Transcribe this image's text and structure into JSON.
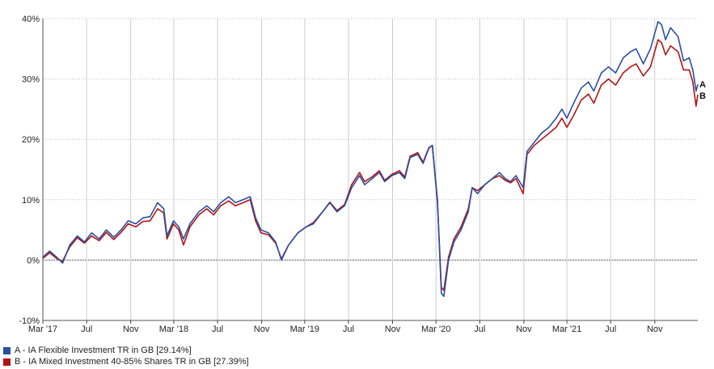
{
  "chart_data": {
    "type": "line",
    "title": "",
    "xlabel": "",
    "ylabel": "",
    "ylim": [
      -10,
      40
    ],
    "yticks": [
      -10,
      0,
      10,
      20,
      30,
      40
    ],
    "ytick_labels": [
      "-10%",
      "0%",
      "10%",
      "20%",
      "30%",
      "40%"
    ],
    "xlim": [
      "2017-03-01",
      "2022-03-01"
    ],
    "xticks": [
      "2017-03-01",
      "2017-07-01",
      "2017-11-01",
      "2018-03-01",
      "2018-07-01",
      "2018-11-01",
      "2019-03-01",
      "2019-07-01",
      "2019-11-01",
      "2020-03-01",
      "2020-07-01",
      "2020-11-01",
      "2021-03-01",
      "2021-07-01",
      "2021-11-01"
    ],
    "xtick_labels": [
      "Mar '17",
      "Jul",
      "Nov",
      "Mar '18",
      "Jul",
      "Nov",
      "Mar '19",
      "Jul",
      "Nov",
      "Mar '20",
      "Jul",
      "Nov",
      "Mar '21",
      "Jul",
      "Nov"
    ],
    "grid": true,
    "legend_position": "bottom-left",
    "series": [
      {
        "name": "A - IA Flexible Investment TR in GB [29.14%]",
        "end_label": "A",
        "color": "#2b4fa0",
        "points": [
          [
            "2017-03-01",
            0.5
          ],
          [
            "2017-03-20",
            1.5
          ],
          [
            "2017-04-10",
            0.4
          ],
          [
            "2017-04-25",
            -0.5
          ],
          [
            "2017-05-15",
            2.5
          ],
          [
            "2017-06-05",
            4.0
          ],
          [
            "2017-06-25",
            3.0
          ],
          [
            "2017-07-15",
            4.5
          ],
          [
            "2017-08-05",
            3.5
          ],
          [
            "2017-08-25",
            5.0
          ],
          [
            "2017-09-15",
            3.8
          ],
          [
            "2017-10-05",
            5.0
          ],
          [
            "2017-10-25",
            6.5
          ],
          [
            "2017-11-15",
            6.0
          ],
          [
            "2017-12-05",
            7.0
          ],
          [
            "2017-12-25",
            7.2
          ],
          [
            "2018-01-15",
            9.5
          ],
          [
            "2018-02-01",
            8.5
          ],
          [
            "2018-02-10",
            4.0
          ],
          [
            "2018-02-28",
            6.5
          ],
          [
            "2018-03-15",
            5.5
          ],
          [
            "2018-03-28",
            3.5
          ],
          [
            "2018-04-15",
            6.0
          ],
          [
            "2018-05-10",
            8.0
          ],
          [
            "2018-06-01",
            9.0
          ],
          [
            "2018-06-20",
            8.0
          ],
          [
            "2018-07-10",
            9.5
          ],
          [
            "2018-08-01",
            10.5
          ],
          [
            "2018-08-20",
            9.5
          ],
          [
            "2018-09-10",
            10.0
          ],
          [
            "2018-09-30",
            10.5
          ],
          [
            "2018-10-15",
            7.0
          ],
          [
            "2018-10-30",
            5.0
          ],
          [
            "2018-11-20",
            4.5
          ],
          [
            "2018-12-10",
            3.0
          ],
          [
            "2018-12-26",
            0.0
          ],
          [
            "2019-01-15",
            2.5
          ],
          [
            "2019-02-10",
            4.5
          ],
          [
            "2019-03-05",
            5.5
          ],
          [
            "2019-03-25",
            6.0
          ],
          [
            "2019-04-20",
            8.0
          ],
          [
            "2019-05-10",
            9.5
          ],
          [
            "2019-05-30",
            8.0
          ],
          [
            "2019-06-20",
            9.0
          ],
          [
            "2019-07-10",
            12.0
          ],
          [
            "2019-08-01",
            14.0
          ],
          [
            "2019-08-15",
            12.5
          ],
          [
            "2019-09-05",
            13.5
          ],
          [
            "2019-09-25",
            14.5
          ],
          [
            "2019-10-10",
            13.0
          ],
          [
            "2019-10-30",
            14.0
          ],
          [
            "2019-11-20",
            14.5
          ],
          [
            "2019-12-05",
            13.5
          ],
          [
            "2019-12-20",
            17.0
          ],
          [
            "2020-01-10",
            17.5
          ],
          [
            "2020-01-25",
            16.0
          ],
          [
            "2020-02-10",
            18.5
          ],
          [
            "2020-02-20",
            19.0
          ],
          [
            "2020-03-05",
            10.0
          ],
          [
            "2020-03-16",
            -5.5
          ],
          [
            "2020-03-23",
            -6.0
          ],
          [
            "2020-04-05",
            0.0
          ],
          [
            "2020-04-20",
            3.0
          ],
          [
            "2020-05-10",
            5.0
          ],
          [
            "2020-05-30",
            8.0
          ],
          [
            "2020-06-10",
            12.0
          ],
          [
            "2020-06-25",
            11.0
          ],
          [
            "2020-07-15",
            12.5
          ],
          [
            "2020-08-05",
            13.5
          ],
          [
            "2020-08-25",
            14.5
          ],
          [
            "2020-09-10",
            13.5
          ],
          [
            "2020-09-25",
            13.0
          ],
          [
            "2020-10-10",
            14.0
          ],
          [
            "2020-10-30",
            12.0
          ],
          [
            "2020-11-10",
            18.0
          ],
          [
            "2020-11-30",
            19.5
          ],
          [
            "2020-12-20",
            21.0
          ],
          [
            "2021-01-10",
            22.0
          ],
          [
            "2021-01-30",
            23.5
          ],
          [
            "2021-02-15",
            25.0
          ],
          [
            "2021-03-01",
            23.5
          ],
          [
            "2021-03-20",
            26.0
          ],
          [
            "2021-04-10",
            28.5
          ],
          [
            "2021-04-30",
            29.5
          ],
          [
            "2021-05-15",
            28.0
          ],
          [
            "2021-06-05",
            31.0
          ],
          [
            "2021-06-25",
            32.0
          ],
          [
            "2021-07-15",
            31.0
          ],
          [
            "2021-08-05",
            33.5
          ],
          [
            "2021-08-25",
            34.5
          ],
          [
            "2021-09-10",
            35.0
          ],
          [
            "2021-09-30",
            32.5
          ],
          [
            "2021-10-20",
            35.0
          ],
          [
            "2021-11-10",
            39.5
          ],
          [
            "2021-11-20",
            39.0
          ],
          [
            "2021-12-01",
            36.5
          ],
          [
            "2021-12-15",
            38.5
          ],
          [
            "2022-01-05",
            37.0
          ],
          [
            "2022-01-20",
            33.0
          ],
          [
            "2022-02-05",
            33.5
          ],
          [
            "2022-02-15",
            31.5
          ],
          [
            "2022-02-24",
            28.0
          ],
          [
            "2022-03-01",
            29.1
          ]
        ]
      },
      {
        "name": "B - IA Mixed Investment 40-85% Shares TR in GB [27.39%]",
        "end_label": "B",
        "color": "#b01515",
        "points": [
          [
            "2017-03-01",
            0.3
          ],
          [
            "2017-03-20",
            1.2
          ],
          [
            "2017-04-10",
            0.2
          ],
          [
            "2017-04-25",
            -0.2
          ],
          [
            "2017-05-15",
            2.2
          ],
          [
            "2017-06-05",
            3.7
          ],
          [
            "2017-06-25",
            2.8
          ],
          [
            "2017-07-15",
            4.0
          ],
          [
            "2017-08-05",
            3.2
          ],
          [
            "2017-08-25",
            4.6
          ],
          [
            "2017-09-15",
            3.4
          ],
          [
            "2017-10-05",
            4.6
          ],
          [
            "2017-10-25",
            6.0
          ],
          [
            "2017-11-15",
            5.5
          ],
          [
            "2017-12-05",
            6.4
          ],
          [
            "2017-12-25",
            6.5
          ],
          [
            "2018-01-15",
            8.5
          ],
          [
            "2018-02-01",
            7.8
          ],
          [
            "2018-02-10",
            3.5
          ],
          [
            "2018-02-28",
            6.0
          ],
          [
            "2018-03-15",
            5.0
          ],
          [
            "2018-03-28",
            2.5
          ],
          [
            "2018-04-15",
            5.5
          ],
          [
            "2018-05-10",
            7.5
          ],
          [
            "2018-06-01",
            8.5
          ],
          [
            "2018-06-20",
            7.5
          ],
          [
            "2018-07-10",
            9.0
          ],
          [
            "2018-08-01",
            9.8
          ],
          [
            "2018-08-20",
            9.0
          ],
          [
            "2018-09-10",
            9.5
          ],
          [
            "2018-09-30",
            10.0
          ],
          [
            "2018-10-15",
            6.5
          ],
          [
            "2018-10-30",
            4.5
          ],
          [
            "2018-11-20",
            4.2
          ],
          [
            "2018-12-10",
            2.8
          ],
          [
            "2018-12-26",
            0.2
          ],
          [
            "2019-01-15",
            2.5
          ],
          [
            "2019-02-10",
            4.5
          ],
          [
            "2019-03-05",
            5.5
          ],
          [
            "2019-03-25",
            6.2
          ],
          [
            "2019-04-20",
            8.0
          ],
          [
            "2019-05-10",
            9.6
          ],
          [
            "2019-05-30",
            8.2
          ],
          [
            "2019-06-20",
            9.2
          ],
          [
            "2019-07-10",
            12.5
          ],
          [
            "2019-08-01",
            14.5
          ],
          [
            "2019-08-15",
            13.0
          ],
          [
            "2019-09-05",
            13.8
          ],
          [
            "2019-09-25",
            14.8
          ],
          [
            "2019-10-10",
            13.2
          ],
          [
            "2019-10-30",
            14.2
          ],
          [
            "2019-11-20",
            14.8
          ],
          [
            "2019-12-05",
            13.8
          ],
          [
            "2019-12-20",
            17.2
          ],
          [
            "2020-01-10",
            17.8
          ],
          [
            "2020-01-25",
            16.2
          ],
          [
            "2020-02-10",
            18.6
          ],
          [
            "2020-02-20",
            19.0
          ],
          [
            "2020-03-05",
            9.5
          ],
          [
            "2020-03-16",
            -4.5
          ],
          [
            "2020-03-23",
            -5.0
          ],
          [
            "2020-04-05",
            0.5
          ],
          [
            "2020-04-20",
            3.5
          ],
          [
            "2020-05-10",
            5.5
          ],
          [
            "2020-05-30",
            8.5
          ],
          [
            "2020-06-10",
            12.0
          ],
          [
            "2020-06-25",
            11.5
          ],
          [
            "2020-07-15",
            12.5
          ],
          [
            "2020-08-05",
            13.5
          ],
          [
            "2020-08-25",
            14.0
          ],
          [
            "2020-09-10",
            13.2
          ],
          [
            "2020-09-25",
            12.8
          ],
          [
            "2020-10-10",
            13.5
          ],
          [
            "2020-10-30",
            11.0
          ],
          [
            "2020-11-10",
            17.5
          ],
          [
            "2020-11-30",
            19.0
          ],
          [
            "2020-12-20",
            20.0
          ],
          [
            "2021-01-10",
            21.0
          ],
          [
            "2021-01-30",
            22.0
          ],
          [
            "2021-02-15",
            23.5
          ],
          [
            "2021-03-01",
            22.0
          ],
          [
            "2021-03-20",
            24.0
          ],
          [
            "2021-04-10",
            26.5
          ],
          [
            "2021-04-30",
            27.5
          ],
          [
            "2021-05-15",
            26.0
          ],
          [
            "2021-06-05",
            29.0
          ],
          [
            "2021-06-25",
            30.0
          ],
          [
            "2021-07-15",
            29.0
          ],
          [
            "2021-08-05",
            31.0
          ],
          [
            "2021-08-25",
            32.0
          ],
          [
            "2021-09-10",
            32.5
          ],
          [
            "2021-09-30",
            30.5
          ],
          [
            "2021-10-20",
            32.0
          ],
          [
            "2021-11-10",
            36.5
          ],
          [
            "2021-11-20",
            36.0
          ],
          [
            "2021-12-01",
            34.0
          ],
          [
            "2021-12-15",
            35.5
          ],
          [
            "2022-01-05",
            34.5
          ],
          [
            "2022-01-20",
            31.5
          ],
          [
            "2022-02-05",
            31.5
          ],
          [
            "2022-02-15",
            29.5
          ],
          [
            "2022-02-24",
            25.5
          ],
          [
            "2022-03-01",
            27.4
          ]
        ]
      }
    ]
  }
}
